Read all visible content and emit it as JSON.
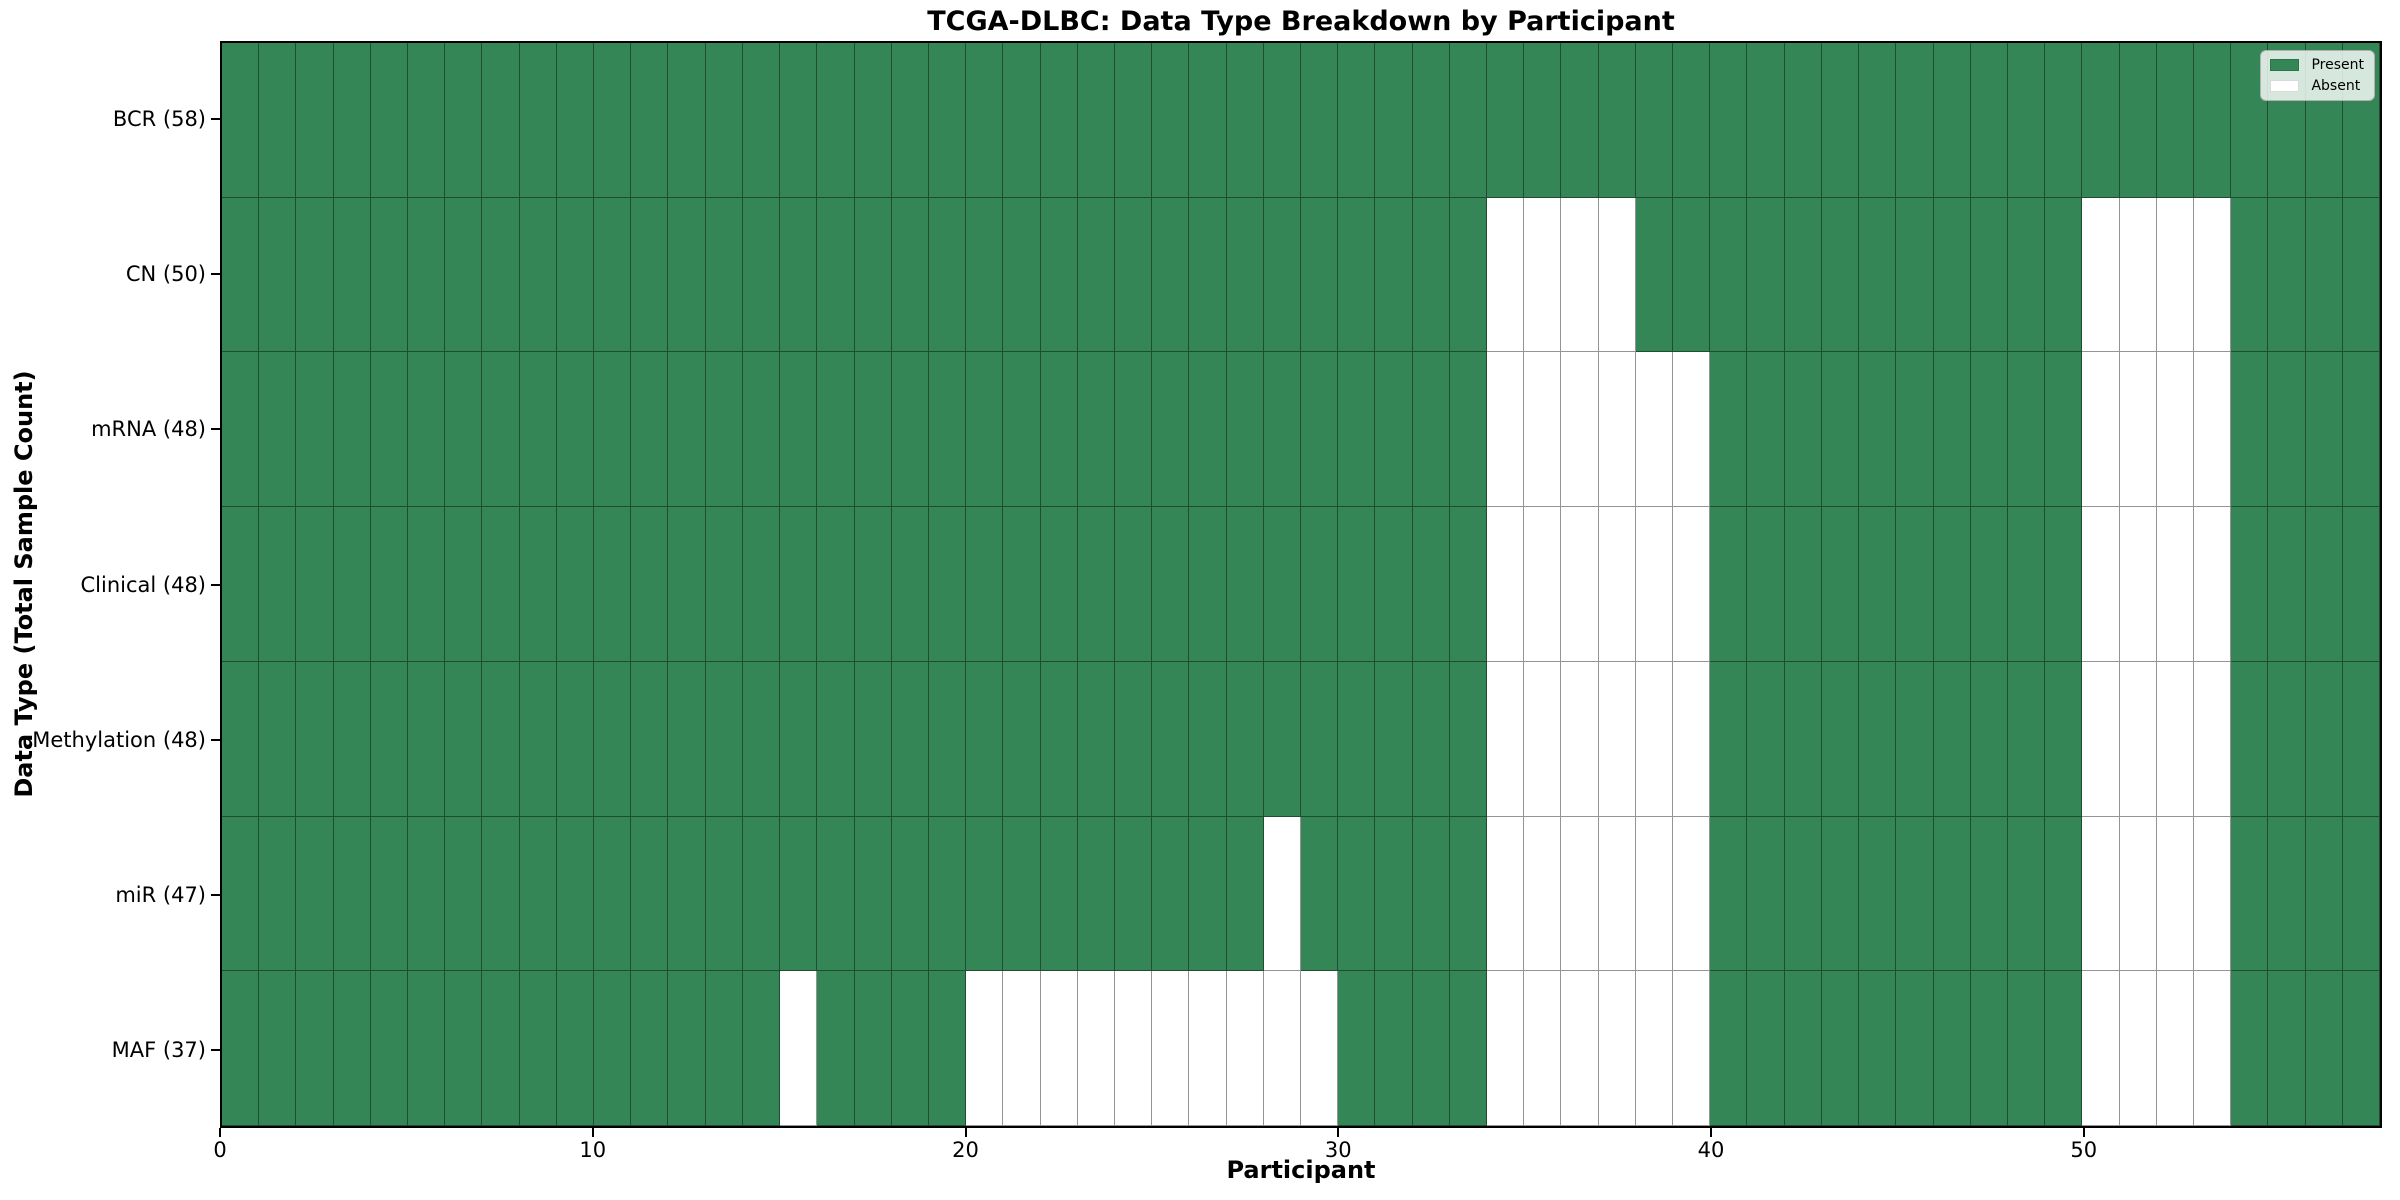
{
  "chart_data": {
    "type": "heatmap",
    "title": "TCGA-DLBC: Data Type Breakdown by Participant",
    "xlabel": "Participant",
    "ylabel": "Data Type (Total Sample Count)",
    "n_participants": 58,
    "x_range": [
      0,
      58
    ],
    "x_ticks": [
      0,
      10,
      20,
      30,
      40,
      50
    ],
    "grid": true,
    "legend_position": "upper-right",
    "colors": {
      "present": "#348657",
      "absent": "#ffffff",
      "gridline": "#000000",
      "spine": "#000000"
    },
    "legend": [
      {
        "label": "Present",
        "color": "#348657"
      },
      {
        "label": "Absent",
        "color": "#ffffff"
      }
    ],
    "rows": [
      {
        "name": "BCR",
        "label": "BCR (58)",
        "present_count": 58,
        "absent_participants": []
      },
      {
        "name": "CN",
        "label": "CN (50)",
        "present_count": 50,
        "absent_participants": [
          34,
          35,
          36,
          37,
          50,
          51,
          52,
          53
        ]
      },
      {
        "name": "mRNA",
        "label": "mRNA (48)",
        "present_count": 48,
        "absent_participants": [
          34,
          35,
          36,
          37,
          38,
          39,
          50,
          51,
          52,
          53
        ]
      },
      {
        "name": "Clinical",
        "label": "Clinical (48)",
        "present_count": 48,
        "absent_participants": [
          34,
          35,
          36,
          37,
          38,
          39,
          50,
          51,
          52,
          53
        ]
      },
      {
        "name": "Methylation",
        "label": "Methylation (48)",
        "present_count": 48,
        "absent_participants": [
          34,
          35,
          36,
          37,
          38,
          39,
          50,
          51,
          52,
          53
        ]
      },
      {
        "name": "miR",
        "label": "miR (47)",
        "present_count": 47,
        "absent_participants": [
          28,
          34,
          35,
          36,
          37,
          38,
          39,
          50,
          51,
          52,
          53
        ]
      },
      {
        "name": "MAF",
        "label": "MAF (37)",
        "present_count": 37,
        "absent_participants": [
          15,
          20,
          21,
          22,
          23,
          24,
          25,
          26,
          27,
          28,
          29,
          34,
          35,
          36,
          37,
          38,
          39,
          50,
          51,
          52,
          53
        ]
      }
    ]
  }
}
